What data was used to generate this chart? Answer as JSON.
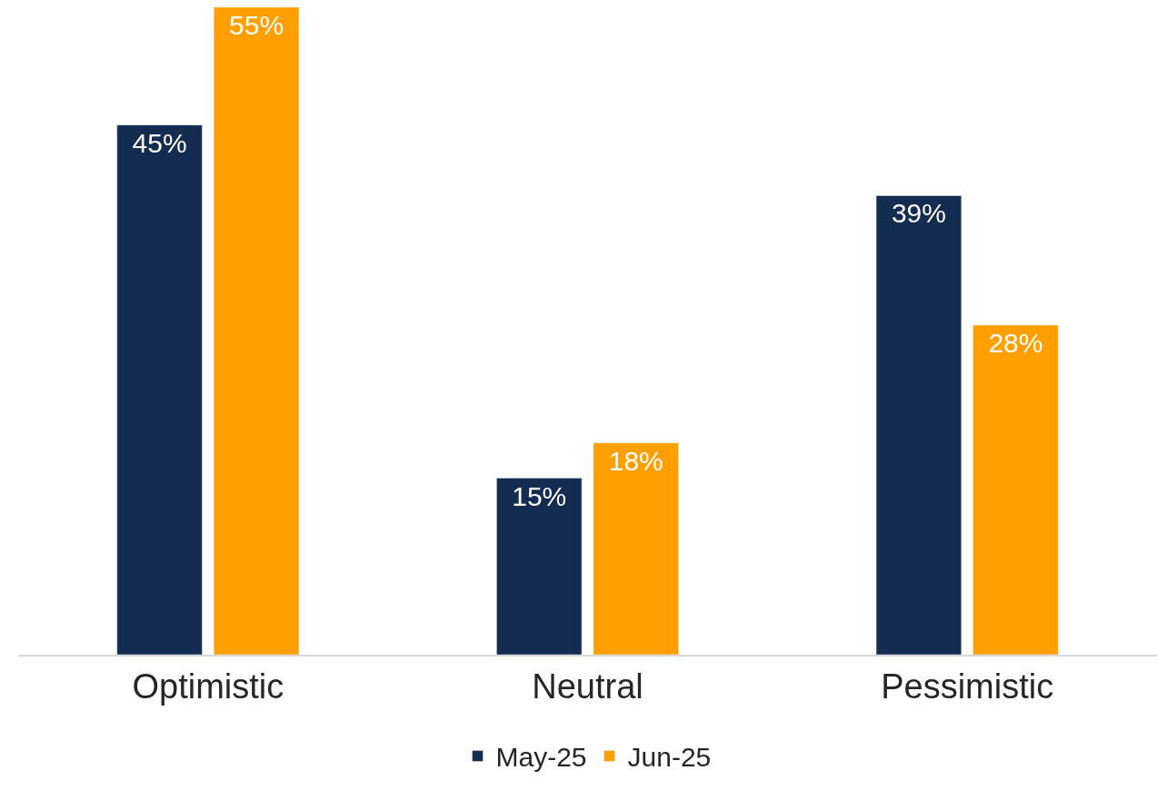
{
  "chart_data": {
    "type": "bar",
    "categories": [
      "Optimistic",
      "Neutral",
      "Pessimistic"
    ],
    "series": [
      {
        "name": "May-25",
        "color": "#132c50",
        "values": [
          45,
          15,
          39
        ],
        "value_labels": [
          "45%",
          "15%",
          "39%"
        ]
      },
      {
        "name": "Jun-25",
        "color": "#ffa000",
        "values": [
          55,
          18,
          28
        ],
        "value_labels": [
          "55%",
          "18%",
          "28%"
        ]
      }
    ],
    "ylim": [
      0,
      55
    ],
    "tick_labels": "x",
    "legend": "bottom"
  }
}
